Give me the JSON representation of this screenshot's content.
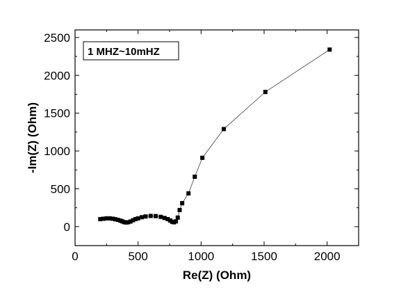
{
  "chart_data": {
    "type": "scatter",
    "title": "",
    "xlabel": "Re(Z) (Ohm)",
    "ylabel": "-Im(Z) (Ohm)",
    "xlim": [
      0,
      2250
    ],
    "ylim": [
      -250,
      2600
    ],
    "xticks": [
      0,
      500,
      1000,
      1500,
      2000
    ],
    "yticks": [
      0,
      500,
      1000,
      1500,
      2000,
      2500
    ],
    "grid": false,
    "legend": "none",
    "annotation": "1 MHZ~10mHZ",
    "marker": "square",
    "line": true,
    "color": "#000000",
    "series": [
      {
        "x": [
          200,
          225,
          250,
          275,
          300,
          320,
          340,
          360,
          375,
          390,
          405,
          420,
          440,
          460,
          480,
          500,
          530,
          560,
          600,
          640,
          680,
          710,
          735,
          755,
          770,
          785,
          800,
          815,
          830,
          850,
          900,
          950,
          1010,
          1180,
          1510,
          2020
        ],
        "y": [
          100,
          105,
          110,
          110,
          105,
          98,
          90,
          80,
          70,
          60,
          55,
          58,
          68,
          85,
          100,
          110,
          125,
          135,
          142,
          140,
          130,
          115,
          100,
          82,
          65,
          58,
          70,
          120,
          220,
          310,
          440,
          660,
          910,
          1290,
          1780,
          2340
        ]
      }
    ]
  }
}
